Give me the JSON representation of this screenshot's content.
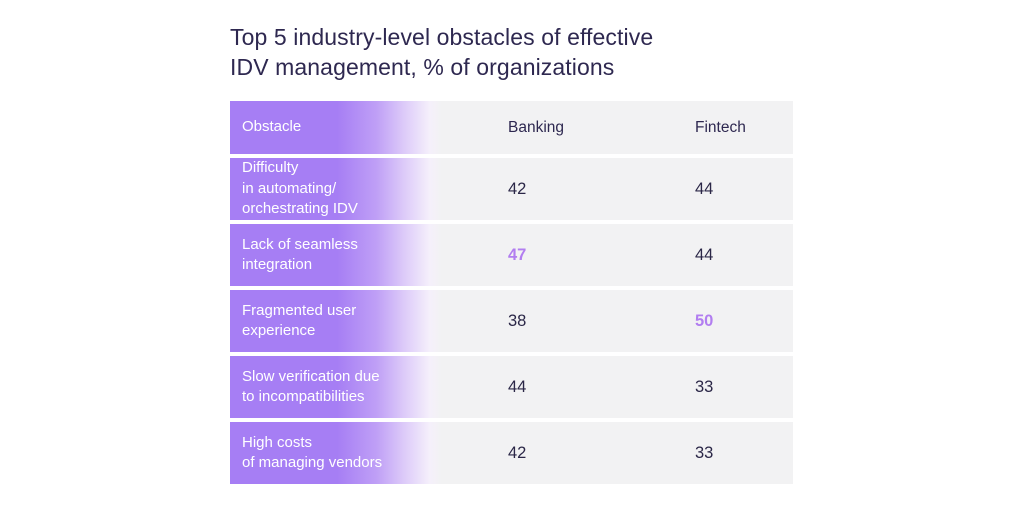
{
  "header": {
    "title": "Top 5 industry-level obstacles of effective\nIDV management, % of organizations"
  },
  "table": {
    "columns": [
      "Obstacle",
      "Banking",
      "Fintech"
    ],
    "rows": [
      {
        "obstacle": "Difficulty\nin automating/\norchestrating IDV",
        "banking": "42",
        "fintech": "44"
      },
      {
        "obstacle": "Lack of seamless\nintegration",
        "banking": "47",
        "fintech": "44",
        "highlight": "banking"
      },
      {
        "obstacle": "Fragmented user\nexperience",
        "banking": "38",
        "fintech": "50",
        "highlight": "fintech"
      },
      {
        "obstacle": "Slow verification due\nto incompatibilities",
        "banking": "44",
        "fintech": "33"
      },
      {
        "obstacle": "High costs\nof managing vendors",
        "banking": "42",
        "fintech": "33"
      }
    ]
  },
  "colors": {
    "accent_purple": "#a67ef4",
    "highlight_purple": "#b27ef0",
    "row_gray": "#f2f2f3",
    "title_text": "#2e2850",
    "value_text": "#2b2747",
    "obstacle_text": "#ffffff",
    "background": "#ffffff"
  },
  "chart_data": {
    "type": "table",
    "title": "Top 5 industry-level obstacles of effective IDV management, % of organizations",
    "unit": "% of organizations",
    "columns": [
      "Obstacle",
      "Banking",
      "Fintech"
    ],
    "categories": [
      "Difficulty in automating/orchestrating IDV",
      "Lack of seamless integration",
      "Fragmented user experience",
      "Slow verification due to incompatibilities",
      "High costs of managing vendors"
    ],
    "series": [
      {
        "name": "Banking",
        "values": [
          42,
          47,
          38,
          44,
          42
        ]
      },
      {
        "name": "Fintech",
        "values": [
          44,
          44,
          50,
          33,
          33
        ]
      }
    ],
    "highlighted_cells": [
      {
        "row": "Lack of seamless integration",
        "column": "Banking",
        "value": 47
      },
      {
        "row": "Fragmented user experience",
        "column": "Fintech",
        "value": 50
      }
    ],
    "legend_position": "none",
    "grid": false
  }
}
